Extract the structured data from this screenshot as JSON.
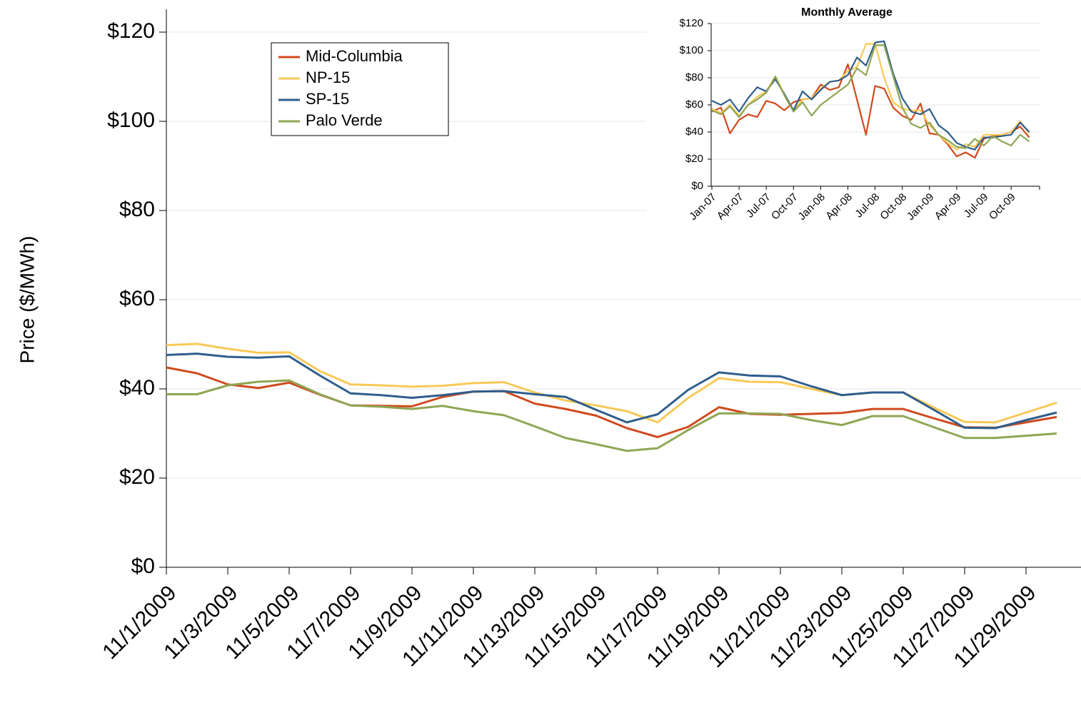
{
  "chart_data": [
    {
      "type": "line",
      "y_label": "Price ($/MWh)",
      "categories": [
        "11/1/2009",
        null,
        "11/3/2009",
        null,
        "11/5/2009",
        null,
        "11/7/2009",
        null,
        "11/9/2009",
        null,
        "11/11/2009",
        null,
        "11/13/2009",
        null,
        "11/15/2009",
        null,
        "11/17/2009",
        null,
        "11/19/2009",
        null,
        "11/21/2009",
        null,
        "11/23/2009",
        null,
        "11/25/2009",
        null,
        "11/27/2009",
        null,
        "11/29/2009",
        null
      ],
      "series": [
        {
          "name": "Mid-Columbia",
          "color": "#d04a1e",
          "values": [
            44.8,
            43.5,
            41,
            40.2,
            41.4,
            38.7,
            36.3,
            36.2,
            36.1,
            38.2,
            39.4,
            39.5,
            36.7,
            35.5,
            34,
            31.2,
            29.2,
            31.5,
            35.9,
            34.4,
            34.2,
            34.4,
            34.6,
            35.5,
            35.5,
            33.4,
            31.4,
            31.3,
            32.5,
            33.7
          ]
        },
        {
          "name": "NP-15",
          "color": "#f8c957",
          "values": [
            49.8,
            50.1,
            49,
            48.1,
            48.2,
            44,
            41,
            40.8,
            40.5,
            40.7,
            41.3,
            41.5,
            39.2,
            37.4,
            36.3,
            35,
            32.5,
            38,
            42.4,
            41.6,
            41.5,
            40,
            38.6,
            39.2,
            39.2,
            35.8,
            32.6,
            32.5,
            34.7,
            36.9
          ]
        },
        {
          "name": "SP-15",
          "color": "#2e5e8c",
          "values": [
            47.6,
            47.9,
            47.2,
            47,
            47.3,
            43,
            39,
            38.6,
            38,
            38.6,
            39.4,
            39.5,
            38.8,
            38.2,
            35.3,
            32.5,
            34.3,
            39.8,
            43.7,
            43,
            42.8,
            40.6,
            38.6,
            39.2,
            39.2,
            35.3,
            31.3,
            31.2,
            33,
            34.7
          ]
        },
        {
          "name": "Palo Verde",
          "color": "#8fa654",
          "values": [
            38.8,
            38.8,
            40.8,
            41.6,
            41.9,
            38.8,
            36.3,
            36,
            35.5,
            36.2,
            35,
            34.1,
            31.6,
            29,
            27.6,
            26.1,
            26.7,
            30.8,
            34.5,
            34.5,
            34.4,
            33,
            31.9,
            33.9,
            33.9,
            31.4,
            29,
            29,
            29.5,
            30
          ]
        }
      ],
      "ylim": [
        0,
        120
      ],
      "yticks": [
        {
          "value": 0,
          "label": "$0"
        },
        {
          "value": 20,
          "label": "$20"
        },
        {
          "value": 40,
          "label": "$40"
        },
        {
          "value": 60,
          "label": "$60"
        },
        {
          "value": 80,
          "label": "$80"
        },
        {
          "value": 100,
          "label": "$100"
        },
        {
          "value": 120,
          "label": "$120"
        }
      ],
      "grid": true,
      "legend": "top-left"
    },
    {
      "type": "line",
      "title": "Monthly Average",
      "categories": [
        "Jan-07",
        null,
        null,
        "Apr-07",
        null,
        null,
        "Jul-07",
        null,
        null,
        "Oct-07",
        null,
        null,
        "Jan-08",
        null,
        null,
        "Apr-08",
        null,
        null,
        "Jul-08",
        null,
        null,
        "Oct-08",
        null,
        null,
        "Jan-09",
        null,
        null,
        "Apr-09",
        null,
        null,
        "Jul-09",
        null,
        null,
        "Oct-09",
        null,
        null
      ],
      "series": [
        {
          "color": "#d04a1e",
          "values": [
            55,
            58,
            39,
            49,
            53,
            51,
            63,
            61,
            56,
            62,
            64,
            65,
            75,
            71,
            73,
            90,
            64,
            38,
            74,
            72,
            58,
            52,
            49,
            61,
            39,
            38,
            31,
            22,
            25,
            21,
            35,
            37,
            38,
            40,
            44,
            36
          ]
        },
        {
          "color": "#f8c957",
          "values": [
            57,
            54,
            60,
            52,
            60,
            66,
            70,
            81,
            68,
            56,
            64,
            65,
            72,
            77,
            78,
            85,
            88,
            105,
            105,
            80,
            62,
            57,
            56,
            56,
            45,
            38,
            32,
            27,
            31,
            29,
            38,
            38,
            38,
            40,
            48,
            39
          ]
        },
        {
          "color": "#2e5e8c",
          "values": [
            63,
            60,
            64,
            55,
            65,
            73,
            70,
            79,
            68,
            56,
            70,
            64,
            71,
            77,
            78,
            82,
            95,
            89,
            106,
            107,
            83,
            65,
            55,
            53,
            57,
            45,
            40,
            32,
            29,
            27,
            36,
            36,
            37,
            38,
            47,
            40
          ]
        },
        {
          "color": "#8fa654",
          "values": [
            56,
            53,
            59,
            51,
            60,
            64,
            69,
            81,
            67,
            55,
            62,
            52,
            60,
            65,
            70,
            75,
            87,
            82,
            104,
            104,
            81,
            58,
            46,
            43,
            47,
            38,
            34,
            29,
            28,
            35,
            30,
            37,
            33,
            30,
            38,
            33
          ]
        }
      ],
      "ylim": [
        0,
        120
      ],
      "yticks": [
        {
          "value": 0,
          "label": "$0"
        },
        {
          "value": 20,
          "label": "$20"
        },
        {
          "value": 40,
          "label": "$40"
        },
        {
          "value": 60,
          "label": "$60"
        },
        {
          "value": 80,
          "label": "$80"
        },
        {
          "value": 100,
          "label": "$100"
        },
        {
          "value": 120,
          "label": "$120"
        }
      ],
      "grid": true
    }
  ]
}
